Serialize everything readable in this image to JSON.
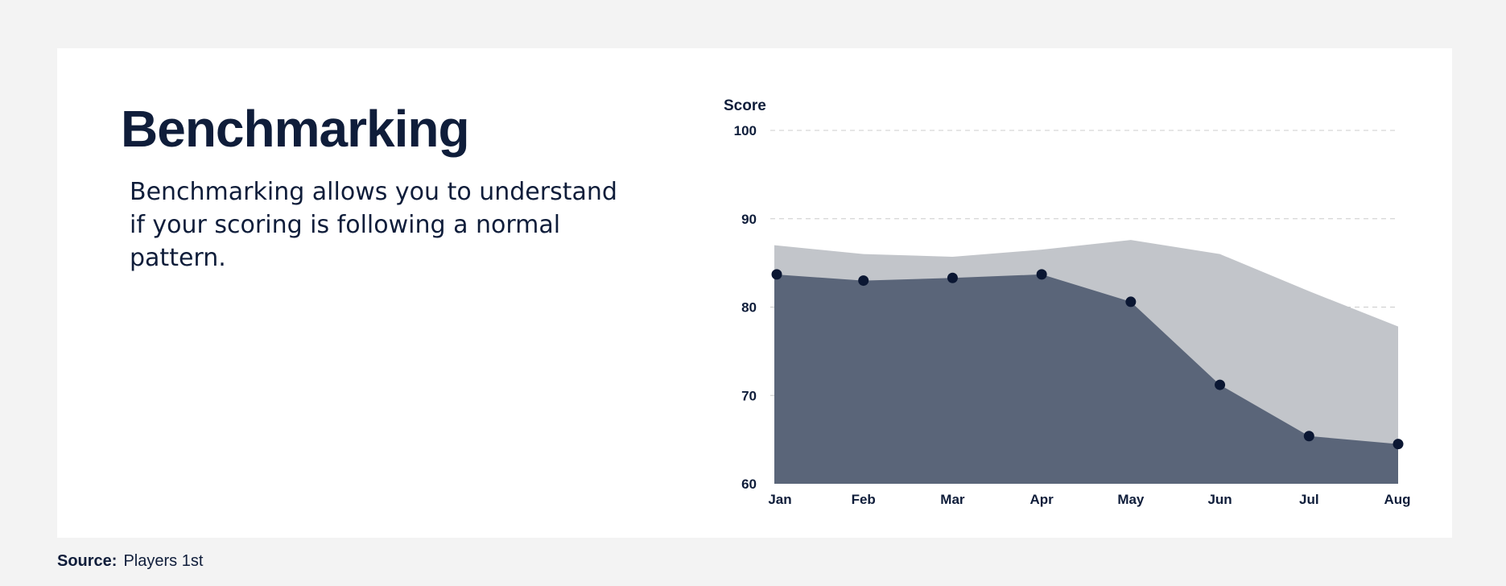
{
  "header": {
    "title": "Benchmarking",
    "subtitle": "Benchmarking allows you to understand if your scoring is following a normal pattern."
  },
  "footer": {
    "source_label": "Source:",
    "source_value": "Players 1st"
  },
  "colors": {
    "background": "#f3f3f3",
    "card": "#ffffff",
    "benchmark_area": "#c2c5ca",
    "score_area": "#586377",
    "marker": "#0b1733",
    "text": "#0f1d3a",
    "grid": "#cccccc"
  },
  "chart_data": {
    "type": "area",
    "ylabel": "Score",
    "xlabel": "",
    "categories": [
      "Jan",
      "Feb",
      "Mar",
      "Apr",
      "May",
      "Jun",
      "Jul",
      "Aug"
    ],
    "ylim": [
      60,
      100
    ],
    "yticks": [
      100,
      90,
      80,
      70,
      60
    ],
    "grid": true,
    "series": [
      {
        "values": [
          87,
          86,
          85.7,
          86.5,
          87.6,
          86,
          81.8,
          77.8
        ]
      },
      {
        "values": [
          83.7,
          83,
          83.3,
          83.7,
          80.6,
          71.2,
          65.4,
          64.5
        ]
      }
    ]
  }
}
